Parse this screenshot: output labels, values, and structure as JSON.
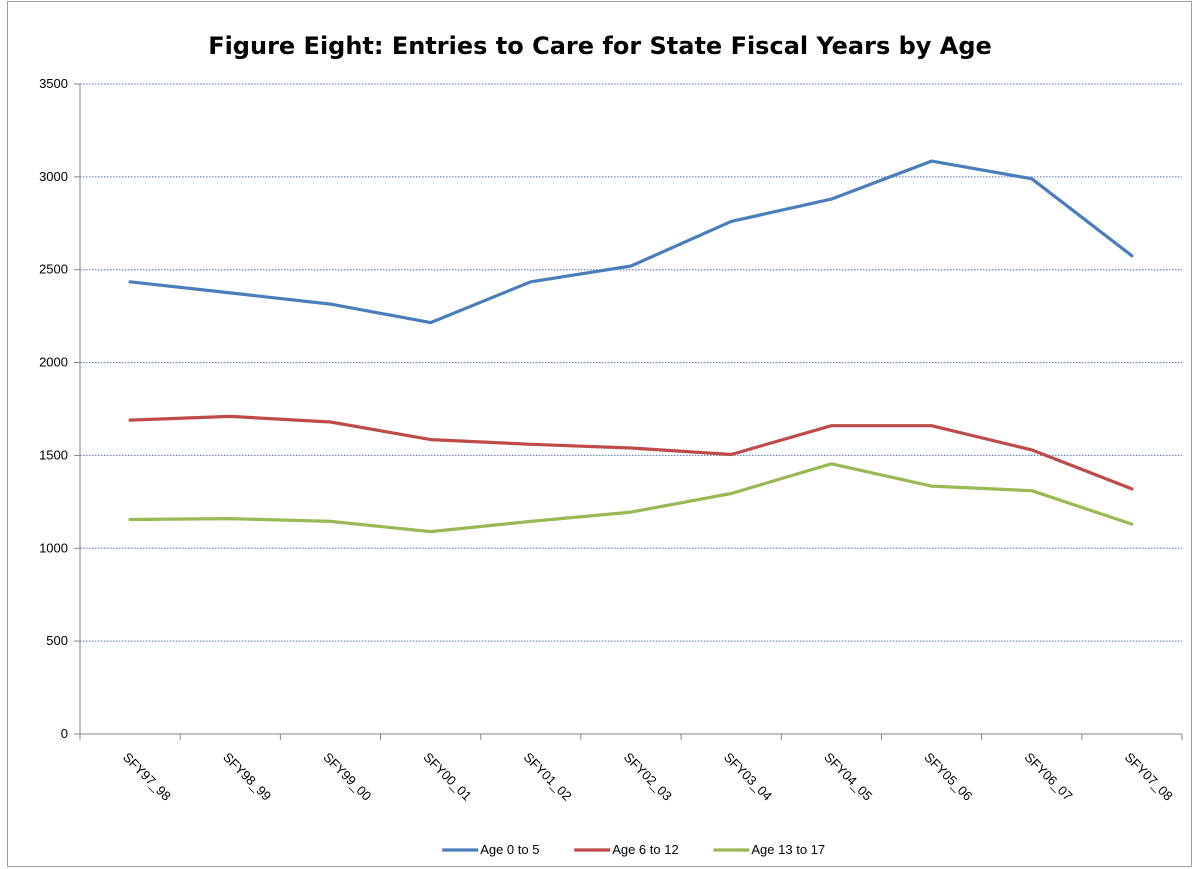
{
  "chart_data": {
    "type": "line",
    "title": "Figure Eight: Entries to Care for State Fiscal Years by Age",
    "xlabel": "",
    "ylabel": "",
    "categories": [
      "SFY97_98",
      "SFY98_99",
      "SFY99_00",
      "SFY00_01",
      "SFY01_02",
      "SFY02_03",
      "SFY03_04",
      "SFY04_05",
      "SFY05_06",
      "SFY06_07",
      "SFY07_08"
    ],
    "ylim": [
      0,
      3500
    ],
    "yticks": [
      0,
      500,
      1000,
      1500,
      2000,
      2500,
      3000,
      3500
    ],
    "grid": "horizontal dotted",
    "legend_position": "bottom",
    "series": [
      {
        "name": "Age 0 to 5",
        "color": "#4a7ebb",
        "values": [
          2435,
          2375,
          2315,
          2215,
          2435,
          2520,
          2760,
          2880,
          3085,
          2990,
          2575
        ]
      },
      {
        "name": "Age 6 to 12",
        "color": "#be4b48",
        "values": [
          1690,
          1710,
          1680,
          1585,
          1560,
          1540,
          1505,
          1660,
          1660,
          1530,
          1320
        ]
      },
      {
        "name": "Age 13 to 17",
        "color": "#98b954",
        "values": [
          1155,
          1160,
          1145,
          1090,
          1145,
          1195,
          1295,
          1455,
          1335,
          1310,
          1130
        ]
      }
    ]
  }
}
